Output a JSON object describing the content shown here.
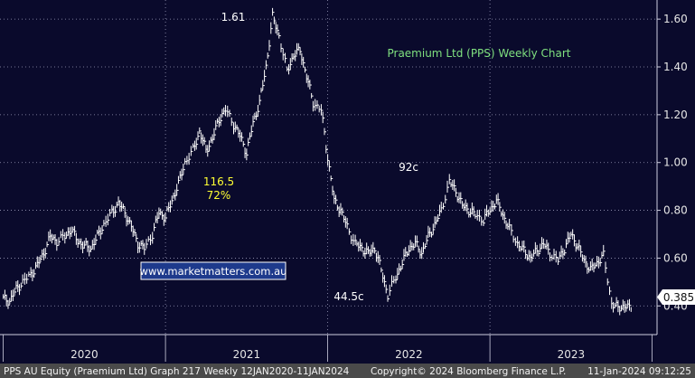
{
  "chart_data": {
    "type": "line",
    "style": "ohlc-weekly",
    "title": "Praemium Ltd (PPS) Weekly Chart",
    "watermark": "www.marketmatters.com.au",
    "x_tick_labels": [
      "2020",
      "2021",
      "2022",
      "2023"
    ],
    "y_tick_labels": [
      "1.60",
      "1.40",
      "1.20",
      "1.00",
      "0.80",
      "0.60",
      "0.40"
    ],
    "ylim": [
      0.28,
      1.68
    ],
    "grid": true,
    "last_value_label": "0.385",
    "last_value": 0.385,
    "series": [
      {
        "points": [
          [
            2020.0,
            0.43
          ],
          [
            2020.04,
            0.42
          ],
          [
            2020.08,
            0.47
          ],
          [
            2020.12,
            0.5
          ],
          [
            2020.17,
            0.53
          ],
          [
            2020.21,
            0.57
          ],
          [
            2020.25,
            0.62
          ],
          [
            2020.29,
            0.69
          ],
          [
            2020.33,
            0.67
          ],
          [
            2020.38,
            0.69
          ],
          [
            2020.42,
            0.72
          ],
          [
            2020.46,
            0.67
          ],
          [
            2020.5,
            0.65
          ],
          [
            2020.54,
            0.64
          ],
          [
            2020.58,
            0.69
          ],
          [
            2020.62,
            0.74
          ],
          [
            2020.67,
            0.79
          ],
          [
            2020.71,
            0.83
          ],
          [
            2020.75,
            0.79
          ],
          [
            2020.79,
            0.73
          ],
          [
            2020.83,
            0.66
          ],
          [
            2020.87,
            0.64
          ],
          [
            2020.92,
            0.7
          ],
          [
            2020.96,
            0.79
          ],
          [
            2021.0,
            0.77
          ],
          [
            2021.04,
            0.84
          ],
          [
            2021.08,
            0.91
          ],
          [
            2021.12,
            1.0
          ],
          [
            2021.17,
            1.05
          ],
          [
            2021.21,
            1.13
          ],
          [
            2021.25,
            1.05
          ],
          [
            2021.29,
            1.1
          ],
          [
            2021.33,
            1.18
          ],
          [
            2021.37,
            1.22
          ],
          [
            2021.42,
            1.16
          ],
          [
            2021.46,
            1.11
          ],
          [
            2021.5,
            1.04
          ],
          [
            2021.54,
            1.165
          ],
          [
            2021.58,
            1.25
          ],
          [
            2021.62,
            1.4
          ],
          [
            2021.66,
            1.61
          ],
          [
            2021.7,
            1.53
          ],
          [
            2021.75,
            1.38
          ],
          [
            2021.79,
            1.45
          ],
          [
            2021.83,
            1.47
          ],
          [
            2021.87,
            1.36
          ],
          [
            2021.91,
            1.25
          ],
          [
            2021.96,
            1.22
          ],
          [
            2022.0,
            1.02
          ],
          [
            2022.04,
            0.84
          ],
          [
            2022.08,
            0.8
          ],
          [
            2022.12,
            0.73
          ],
          [
            2022.17,
            0.66
          ],
          [
            2022.21,
            0.64
          ],
          [
            2022.25,
            0.62
          ],
          [
            2022.29,
            0.64
          ],
          [
            2022.33,
            0.55
          ],
          [
            2022.37,
            0.445
          ],
          [
            2022.42,
            0.52
          ],
          [
            2022.46,
            0.58
          ],
          [
            2022.5,
            0.64
          ],
          [
            2022.54,
            0.66
          ],
          [
            2022.58,
            0.62
          ],
          [
            2022.62,
            0.69
          ],
          [
            2022.66,
            0.74
          ],
          [
            2022.7,
            0.8
          ],
          [
            2022.75,
            0.92
          ],
          [
            2022.79,
            0.88
          ],
          [
            2022.83,
            0.82
          ],
          [
            2022.87,
            0.8
          ],
          [
            2022.91,
            0.78
          ],
          [
            2022.96,
            0.76
          ],
          [
            2023.0,
            0.8
          ],
          [
            2023.04,
            0.84
          ],
          [
            2023.08,
            0.78
          ],
          [
            2023.12,
            0.72
          ],
          [
            2023.17,
            0.66
          ],
          [
            2023.21,
            0.63
          ],
          [
            2023.25,
            0.6
          ],
          [
            2023.29,
            0.63
          ],
          [
            2023.33,
            0.66
          ],
          [
            2023.37,
            0.62
          ],
          [
            2023.42,
            0.59
          ],
          [
            2023.46,
            0.64
          ],
          [
            2023.5,
            0.7
          ],
          [
            2023.54,
            0.65
          ],
          [
            2023.58,
            0.59
          ],
          [
            2023.62,
            0.55
          ],
          [
            2023.66,
            0.58
          ],
          [
            2023.7,
            0.61
          ],
          [
            2023.75,
            0.41
          ],
          [
            2023.79,
            0.39
          ],
          [
            2023.83,
            0.4
          ],
          [
            2023.87,
            0.385
          ]
        ]
      }
    ],
    "annotations": [
      {
        "text": "1.61",
        "x": 2021.66,
        "y": 1.61,
        "color": "#ffffff"
      },
      {
        "text": "116.5",
        "x": 2021.54,
        "y": 1.165,
        "color": "#ffff33"
      },
      {
        "text": "72%",
        "x": 2021.54,
        "y": 1.165,
        "color": "#ffff33"
      },
      {
        "text": "92c",
        "x": 2022.75,
        "y": 0.92,
        "color": "#ffffff"
      },
      {
        "text": "44.5c",
        "x": 2022.37,
        "y": 0.445,
        "color": "#ffffff"
      }
    ]
  },
  "footer": {
    "left": "PPS AU Equity (Praemium Ltd) Graph 217  Weekly 12JAN2020-11JAN2024",
    "middle": "Copyright© 2024 Bloomberg Finance L.P.",
    "right": "11-Jan-2024 09:12:25"
  },
  "colors": {
    "background": "#0a0a2c",
    "price": "#ffffff",
    "grid": "#9a9ab8",
    "title": "#7fe07f",
    "highlight": "#ffff33",
    "watermark_box": "#1e3a8c",
    "footer_bg": "#4a4a4a"
  }
}
